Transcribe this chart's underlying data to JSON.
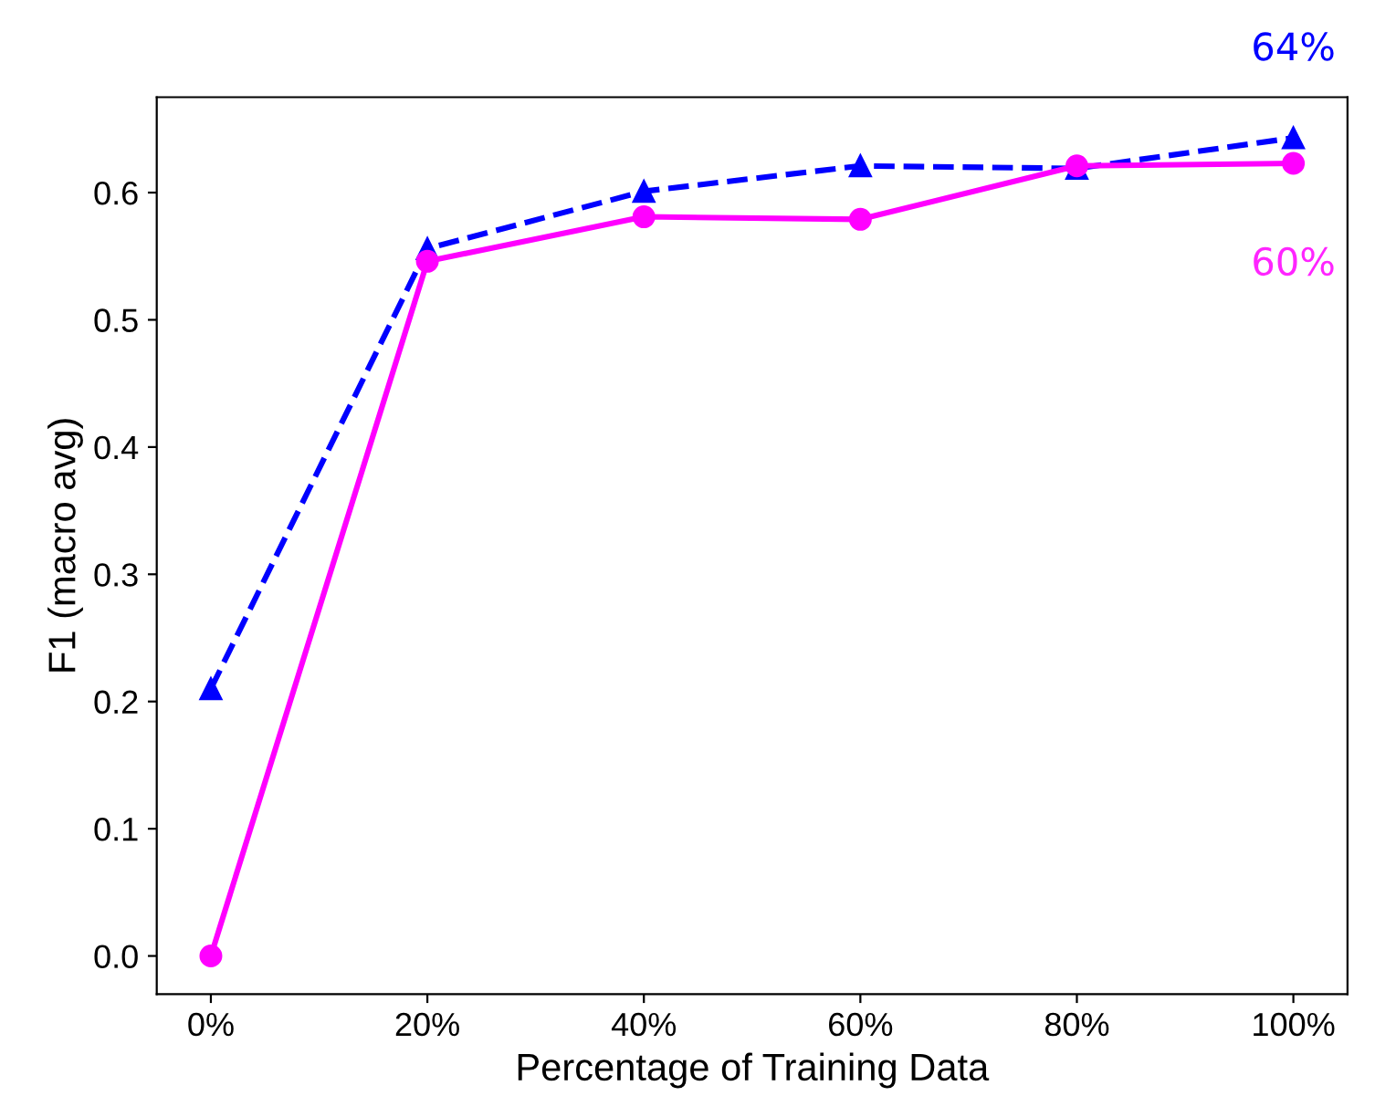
{
  "chart_data": {
    "type": "line",
    "xlabel": "Percentage of Training Data",
    "ylabel": "F1 (macro avg)",
    "categories": [
      "0%",
      "20%",
      "40%",
      "60%",
      "80%",
      "100%"
    ],
    "series": [
      {
        "color": "#0000ff",
        "marker": "triangle",
        "line_style": "dashed",
        "values": [
          0.21,
          0.556,
          0.601,
          0.621,
          0.619,
          0.643
        ]
      },
      {
        "color": "#ff00ff",
        "marker": "circle",
        "line_style": "solid",
        "values": [
          0.0,
          0.546,
          0.581,
          0.579,
          0.621,
          0.623
        ]
      }
    ],
    "annotations": [
      "64%",
      "60%"
    ],
    "ylim": [
      -0.03,
      0.675
    ],
    "yticks": [
      {
        "value": 0,
        "label": "0.0"
      },
      0.1,
      0.2,
      0.3,
      0.4,
      0.5,
      0.6
    ],
    "grid": false
  }
}
